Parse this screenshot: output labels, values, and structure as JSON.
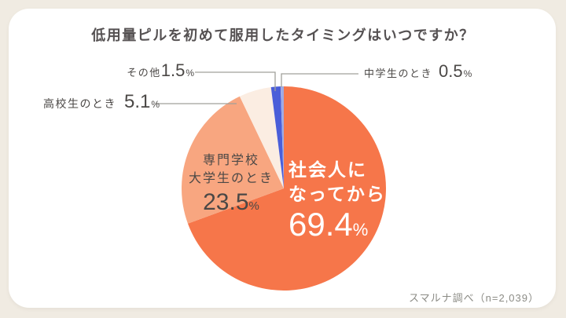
{
  "page": {
    "title": "低用量ピルを初めて服用したタイミングはいつですか？",
    "source": "スマルナ調べ（n=2,039）"
  },
  "colors": {
    "background": "#f0ebe2",
    "card": "#ffffff",
    "accent_orange": "#f6764a",
    "salmon": "#f8a680",
    "cream": "#fbede2",
    "blue": "#4a5ed9",
    "light_blue": "#9fabe5",
    "text_dark": "#4b4846",
    "text_muted": "#8c8c86"
  },
  "chart_data": {
    "type": "pie",
    "title": "低用量ピルを初めて服用したタイミングはいつですか？",
    "n_label": "n=2,039",
    "direction": "clockwise",
    "start_angle_deg": 0,
    "center": [
      361,
      240
    ],
    "radius": 130,
    "series": [
      {
        "id": "shakaijin",
        "name": "社会人になってから",
        "value": 69.4,
        "color": "#f6764a"
      },
      {
        "id": "senmon",
        "name": "専門学校大学生のとき",
        "value": 23.5,
        "color": "#f8a680"
      },
      {
        "id": "kokosei",
        "name": "高校生のとき",
        "value": 5.1,
        "color": "#fbede2"
      },
      {
        "id": "sonota",
        "name": "その他",
        "value": 1.5,
        "color": "#4a5ed9"
      },
      {
        "id": "chugakusei",
        "name": "中学生のとき",
        "value": 0.5,
        "color": "#9fabe5"
      }
    ]
  },
  "labels": {
    "sonota": {
      "text": "その他",
      "value": "1.5",
      "unit": "%"
    },
    "chugakusei": {
      "text": "中学生のとき",
      "value": "0.5",
      "unit": "%"
    },
    "kokosei": {
      "text": "高校生のとき",
      "value": "5.1",
      "unit": "%"
    },
    "senmon": {
      "line1": "専門学校",
      "line2": "大学生のとき",
      "value": "23.5",
      "unit": "%"
    },
    "shakaijin": {
      "line1": "社会人に",
      "line2": "なってから",
      "value": "69.4",
      "unit": "%"
    }
  }
}
